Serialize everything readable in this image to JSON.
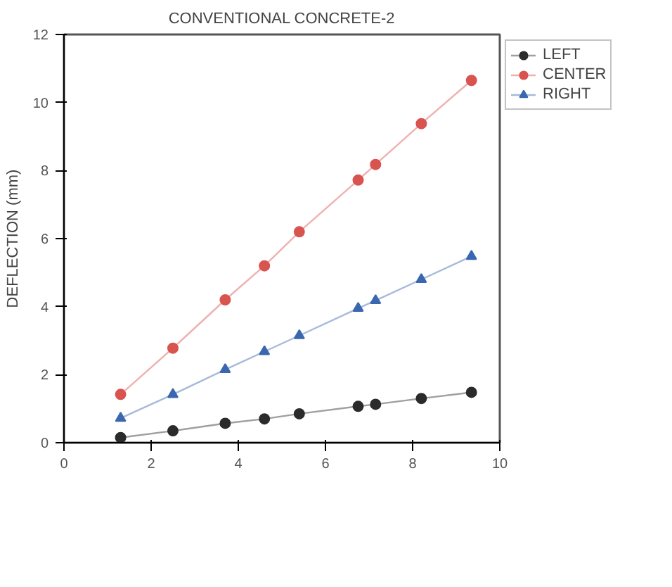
{
  "chart_data": {
    "type": "line",
    "title": "CONVENTIONAL CONCRETE-2",
    "ylabel": "DEFLECTION (mm)",
    "x": [
      1.3,
      2.5,
      3.7,
      4.6,
      5.4,
      6.75,
      7.15,
      8.2,
      9.35
    ],
    "series": [
      {
        "name": "LEFT",
        "color": "#2b2b2b",
        "marker": "circle",
        "values": [
          0.15,
          0.35,
          0.57,
          0.7,
          0.85,
          1.07,
          1.13,
          1.3,
          1.48
        ]
      },
      {
        "name": "CENTER",
        "color": "#d9534f",
        "marker": "circle",
        "values": [
          1.42,
          2.78,
          4.2,
          5.2,
          6.2,
          7.72,
          8.18,
          9.38,
          10.65
        ]
      },
      {
        "name": "RIGHT",
        "color": "#3a67b0",
        "marker": "triangle",
        "values": [
          0.72,
          1.42,
          2.15,
          2.68,
          3.15,
          3.95,
          4.18,
          4.8,
          5.48
        ]
      }
    ],
    "xlim": [
      0,
      10
    ],
    "xticks": [
      0,
      2,
      4,
      6,
      8,
      10
    ],
    "ylim": [
      0,
      12
    ],
    "yticks": [
      0,
      2,
      4,
      6,
      8,
      10,
      12
    ],
    "grid": false,
    "legend": "top right"
  }
}
